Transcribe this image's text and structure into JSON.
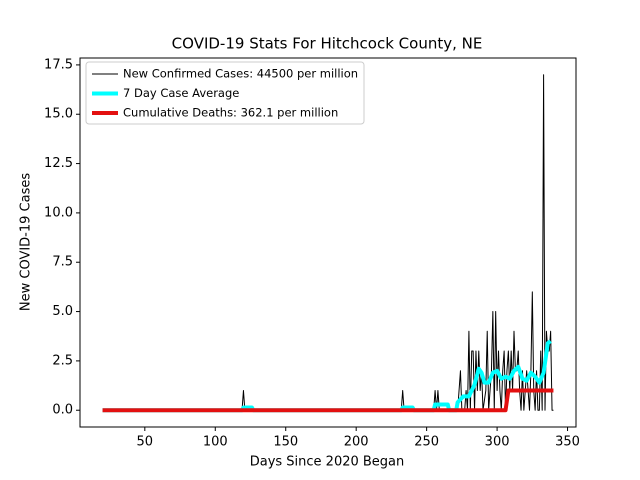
{
  "chart_data": {
    "type": "line",
    "title": "COVID-19 Stats For Hitchcock County, NE",
    "xlabel": "Days Since 2020 Began",
    "ylabel": "New COVID-19 Cases",
    "xlim": [
      4,
      356
    ],
    "ylim": [
      -0.85,
      17.85
    ],
    "xticks": [
      50,
      100,
      150,
      200,
      250,
      300,
      350
    ],
    "yticks": [
      {
        "value": 0,
        "label": "0.0"
      },
      2.5,
      {
        "value": 5,
        "label": "5.0"
      },
      7.5,
      {
        "value": 10,
        "label": "10.0"
      },
      12.5,
      {
        "value": 15,
        "label": "15.0"
      },
      17.5
    ],
    "legend": "upper left",
    "series": [
      {
        "name": "New Confirmed Cases: 44500 per million",
        "color": "#000000",
        "width": 1,
        "x": [
          20,
          119,
          120,
          121,
          232,
          233,
          234,
          255,
          256,
          257,
          258,
          259,
          260,
          272,
          273,
          274,
          275,
          277,
          278,
          279,
          280,
          281,
          282,
          283,
          284,
          285,
          286,
          287,
          288,
          289,
          290,
          292,
          293,
          294,
          295,
          296,
          297,
          298,
          299,
          300,
          301,
          302,
          303,
          304,
          305,
          306,
          307,
          308,
          309,
          310,
          311,
          312,
          313,
          314,
          315,
          316,
          317,
          318,
          319,
          320,
          321,
          322,
          323,
          324,
          325,
          326,
          327,
          328,
          329,
          330,
          331,
          332,
          333,
          334,
          335,
          336,
          337,
          338,
          339,
          340
        ],
        "values": [
          0,
          0,
          1,
          0,
          0,
          1,
          0,
          0,
          1,
          0,
          1,
          0,
          0,
          0,
          1,
          2,
          0,
          0,
          1,
          0,
          4,
          0,
          3,
          3,
          0,
          3,
          1,
          3,
          1,
          2,
          0,
          1,
          4,
          0,
          1,
          2,
          5,
          0,
          5,
          1,
          3,
          1,
          0,
          2,
          3,
          0,
          2,
          3,
          1,
          3,
          1,
          4,
          2,
          2,
          3,
          1,
          0,
          2,
          0,
          1,
          2,
          1,
          0,
          2,
          6,
          1,
          0,
          2,
          0,
          0,
          3,
          0,
          17,
          0,
          4,
          3,
          3,
          4,
          0,
          0
        ]
      },
      {
        "name": "7 Day Case Average",
        "color": "#00ffff",
        "width": 4,
        "x": [
          20,
          119,
          120,
          126,
          127,
          232,
          233,
          240,
          241,
          255,
          256,
          265,
          266,
          271,
          272,
          276,
          280,
          284,
          287,
          289,
          291,
          294,
          297,
          300,
          303,
          306,
          309,
          312,
          315,
          318,
          321,
          324,
          327,
          330,
          333,
          336,
          338
        ],
        "values": [
          0,
          0,
          0.14,
          0.14,
          0,
          0,
          0.14,
          0.14,
          0,
          0,
          0.29,
          0.29,
          0,
          0,
          0.4,
          0.7,
          0.7,
          1.3,
          2.1,
          1.9,
          1.4,
          1.4,
          1.9,
          2,
          1.6,
          1.7,
          1.6,
          2,
          2.2,
          1.6,
          1.5,
          1.9,
          1.7,
          1.4,
          1.9,
          3.4,
          3.5
        ]
      },
      {
        "name": "Cumulative Deaths: 362.1 per million",
        "color": "#e31010",
        "width": 4,
        "x": [
          20,
          306,
          308,
          340
        ],
        "values": [
          0,
          0,
          1,
          1
        ]
      }
    ]
  }
}
